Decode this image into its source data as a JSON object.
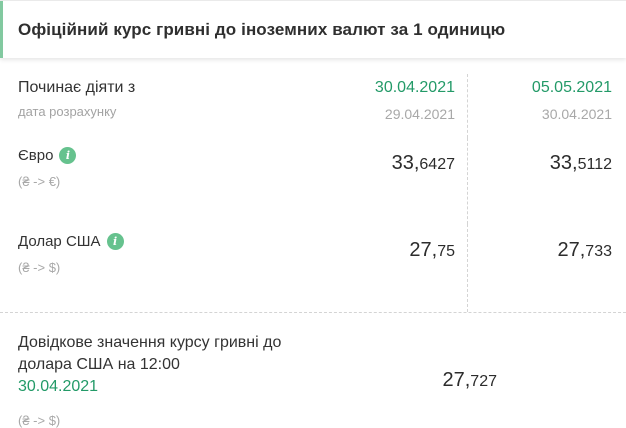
{
  "title": "Офіційний курс гривні до іноземних валют за 1 одиницю",
  "colors": {
    "accent_green": "#239a68",
    "accent_light_green": "#82c9a0",
    "info_icon_green": "#66c28e"
  },
  "icons": {
    "info": "i"
  },
  "table": {
    "effective_label": "Починає діяти з",
    "calc_label": "дата розрахунку",
    "columns": [
      {
        "effective_date": "30.04.2021",
        "calc_date": "29.04.2021"
      },
      {
        "effective_date": "05.05.2021",
        "calc_date": "30.04.2021"
      }
    ],
    "rows": [
      {
        "name": "Євро",
        "pair": "(₴ -> €)",
        "values": [
          {
            "int": "33,",
            "frac": "6427"
          },
          {
            "int": "33,",
            "frac": "5112"
          }
        ]
      },
      {
        "name": "Долар США",
        "pair": "(₴ -> $)",
        "values": [
          {
            "int": "27,",
            "frac": "75"
          },
          {
            "int": "27,",
            "frac": "733"
          }
        ]
      }
    ]
  },
  "reference": {
    "label_line1": "Довідкове значення курсу гривні до",
    "label_line2": "долара США на 12:00",
    "date": "30.04.2021",
    "pair": "(₴ -> $)",
    "value": {
      "int": "27,",
      "frac": "727"
    }
  }
}
